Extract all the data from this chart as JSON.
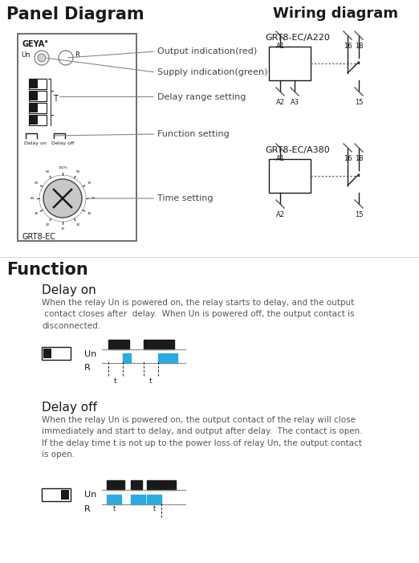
{
  "title_panel": "Panel Diagram",
  "title_wiring": "Wiring diagram",
  "title_function": "Function",
  "panel_labels": [
    "Output indication(red)",
    "Supply indication(green)",
    "Delay range setting",
    "Function setting",
    "Time setting"
  ],
  "wiring_label1": "GRT8-EC/A220",
  "wiring_label2": "GRT8-EC/A380",
  "panel_device": "GRT8-EC",
  "delay_on_title": "Delay on",
  "delay_on_text": "When the relay Un is powered on, the relay starts to delay, and the output\n contact closes after  delay.  When Un is powered off, the output contact is\ndisconnected.",
  "delay_off_title": "Delay off",
  "delay_off_text": "When the relay Un is powered on, the output contact of the relay will close\nimmediately and start to delay, and output after delay.  The contact is open.\nIf the delay time t is not up to the power loss of relay Un, the output contact\nis open.",
  "color_black": "#1a1a1a",
  "color_blue": "#29aae1",
  "color_gray": "#888888",
  "color_light_gray": "#cccccc",
  "bg_color": "#ffffff"
}
